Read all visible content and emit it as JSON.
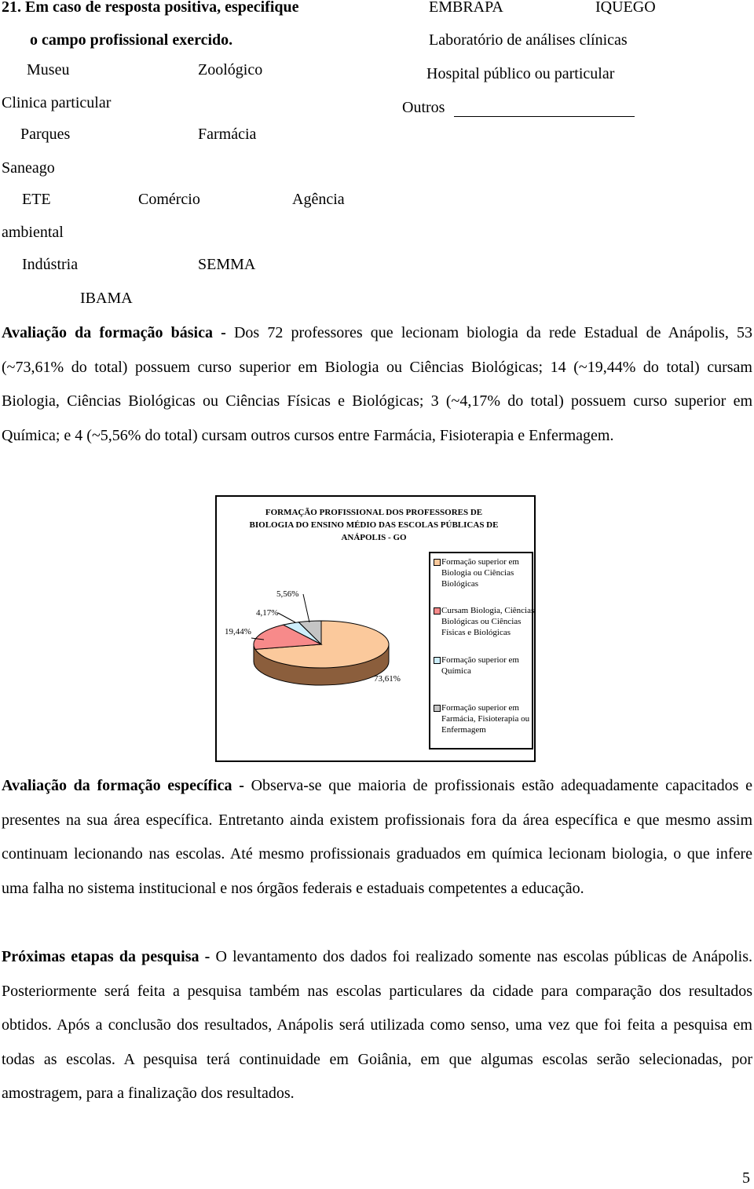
{
  "question": {
    "title_line1": "21. Em caso de resposta positiva, especifique",
    "title_line2": "o campo profissional exercido.",
    "options": [
      "Museu",
      "Zoológico",
      "Clinica particular",
      "Parques",
      "Farmácia",
      "Saneago",
      "ETE",
      "Comércio",
      "Agência",
      "ambiental",
      "Indústria",
      "SEMMA",
      "IBAMA",
      "EMBRAPA",
      "IQUEGO",
      "Laboratório de análises clínicas",
      "Hospital público ou particular",
      "Outros"
    ]
  },
  "paragraphs": [
    {
      "lead": "Avaliação da formação básica -",
      "text": "Dos 72 professores que lecionam biologia da rede Estadual de Anápolis, 53 (~73,61% do total) possuem curso superior em Biologia ou Ciências Biológicas; 14 (~19,44% do total) cursam Biologia, Ciências Biológicas ou Ciências Físicas e Biológicas; 3 (~4,17% do total) possuem curso superior em Química; e 4 (~5,56% do total) cursam outros cursos entre Farmácia, Fisioterapia e Enfermagem."
    },
    {
      "lead": "Avaliação da formação específica -",
      "text": "Observa-se  que maioria de profissionais estão adequadamente capacitados e presentes na sua área específica. Entretanto ainda existem profissionais fora da área específica e que mesmo assim continuam lecionando nas escolas. Até mesmo profissionais graduados em química lecionam biologia, o que infere uma falha no sistema institucional e nos órgãos federais e estaduais competentes a educação."
    },
    {
      "lead": "Próximas etapas da pesquisa -",
      "text": "O  levantamento dos dados foi realizado somente nas escolas públicas de Anápolis. Posteriormente será feita a pesquisa também nas escolas particulares da cidade para comparação dos resultados obtidos. Após a conclusão dos resultados, Anápolis será utilizada como senso, uma vez que foi feita a pesquisa em todas as escolas. A pesquisa terá continuidade em Goiânia, em que algumas escolas serão selecionadas, por amostragem, para a finalização dos resultados."
    }
  ],
  "chart_data": {
    "type": "pie",
    "title": "FORMAÇÃO PROFISSIONAL DOS PROFESSORES DE BIOLOGIA DO ENSINO MÉDIO DAS ESCOLAS PÚBLICAS DE ANÁPOLIS - GO",
    "categories": [
      "Formação superior em Biologia ou Ciências Biológicas",
      "Cursam Biologia, Ciências Biológicas ou Ciências Físicas e Biológicas",
      "Formação superior em Química",
      "Formação superior em Farmácia, Fisioterapia ou Enfermagem"
    ],
    "values": [
      73.61,
      19.44,
      4.17,
      5.56
    ],
    "value_labels": [
      "73,61%",
      "19,44%",
      "4,17%",
      "5,56%"
    ],
    "colors": [
      "#fbc99c",
      "#f78a8a",
      "#cdeefc",
      "#c4c4c4"
    ]
  },
  "page_number": "5"
}
